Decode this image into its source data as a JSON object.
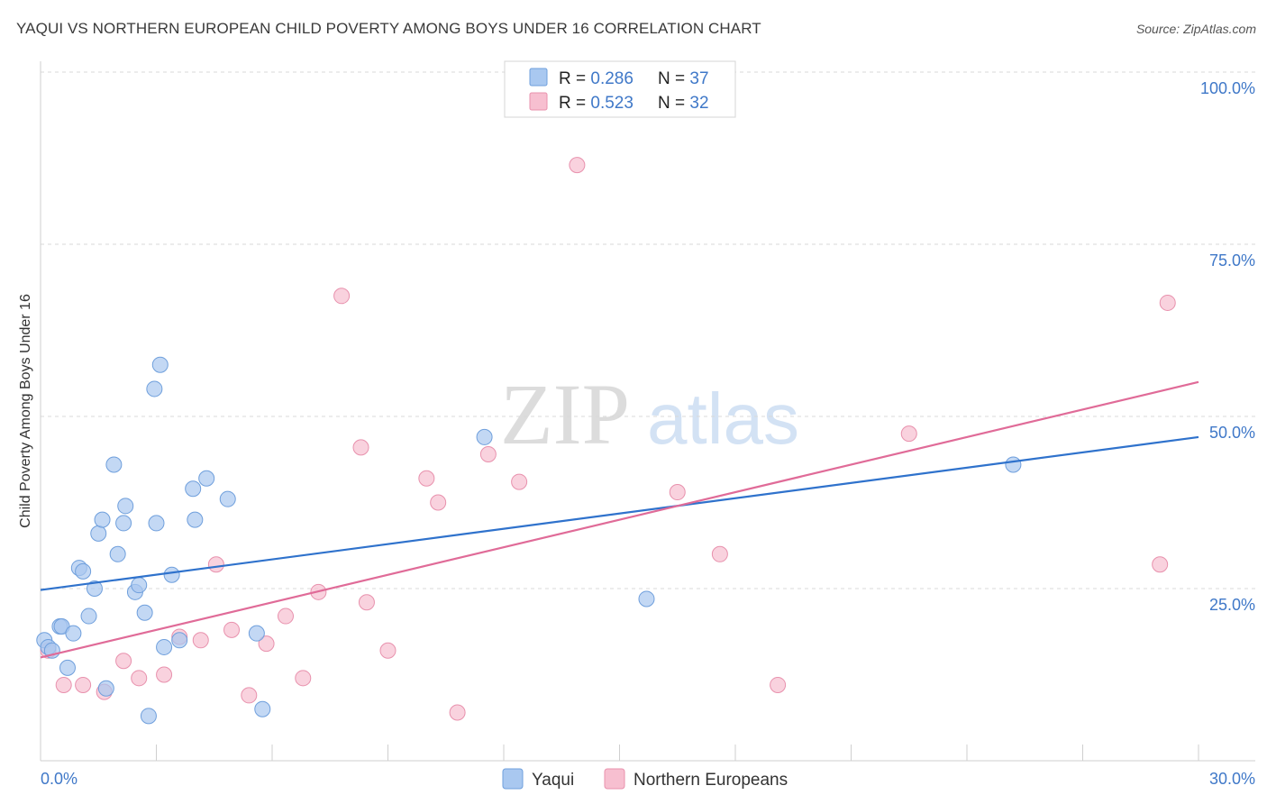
{
  "header": {
    "title": "YAQUI VS NORTHERN EUROPEAN CHILD POVERTY AMONG BOYS UNDER 16 CORRELATION CHART",
    "source": "Source: ZipAtlas.com"
  },
  "watermark": {
    "zip": "ZIP",
    "atlas": "atlas"
  },
  "colors": {
    "blue_fill": "#a9c8f0",
    "blue_stroke": "#6f9fdc",
    "blue_line": "#2f72cc",
    "pink_fill": "#f7bfd0",
    "pink_stroke": "#e891ad",
    "pink_line": "#e06b98",
    "axis_text": "#3f78c8",
    "grid": "#d9d9d9"
  },
  "legend_top": {
    "rows": [
      {
        "r_label": "R = ",
        "r_value": "0.286",
        "n_label": "N = ",
        "n_value": "37"
      },
      {
        "r_label": "R = ",
        "r_value": "0.523",
        "n_label": "N = ",
        "n_value": "32"
      }
    ]
  },
  "chart_data": {
    "type": "scatter",
    "title": "YAQUI VS NORTHERN EUROPEAN CHILD POVERTY AMONG BOYS UNDER 16 CORRELATION CHART",
    "xlabel": "",
    "ylabel": "Child Poverty Among Boys Under 16",
    "xlim": [
      0,
      30
    ],
    "ylim": [
      0,
      100
    ],
    "x_tick_labels": [
      "0.0%",
      "30.0%"
    ],
    "y_ticks": [
      25,
      50,
      75,
      100
    ],
    "y_tick_labels": [
      "25.0%",
      "50.0%",
      "75.0%",
      "100.0%"
    ],
    "grid": true,
    "legend_position": "bottom-center",
    "series": [
      {
        "name": "Yaqui",
        "r": 0.286,
        "n": 37,
        "trend": {
          "x": [
            0,
            30
          ],
          "y": [
            24.8,
            47.0
          ]
        },
        "points": [
          [
            0.1,
            17.5
          ],
          [
            0.2,
            16.5
          ],
          [
            0.3,
            16.0
          ],
          [
            0.5,
            19.5
          ],
          [
            0.55,
            19.5
          ],
          [
            0.7,
            13.5
          ],
          [
            0.85,
            18.5
          ],
          [
            1.0,
            28.0
          ],
          [
            1.1,
            27.5
          ],
          [
            1.25,
            21.0
          ],
          [
            1.4,
            25.0
          ],
          [
            1.5,
            33.0
          ],
          [
            1.6,
            35.0
          ],
          [
            1.7,
            10.5
          ],
          [
            1.9,
            43.0
          ],
          [
            2.0,
            30.0
          ],
          [
            2.15,
            34.5
          ],
          [
            2.2,
            37.0
          ],
          [
            2.45,
            24.5
          ],
          [
            2.55,
            25.5
          ],
          [
            2.7,
            21.5
          ],
          [
            2.8,
            6.5
          ],
          [
            2.95,
            54.0
          ],
          [
            3.0,
            34.5
          ],
          [
            3.1,
            57.5
          ],
          [
            3.2,
            16.5
          ],
          [
            3.4,
            27.0
          ],
          [
            3.6,
            17.5
          ],
          [
            3.95,
            39.5
          ],
          [
            4.0,
            35.0
          ],
          [
            4.3,
            41.0
          ],
          [
            4.85,
            38.0
          ],
          [
            5.6,
            18.5
          ],
          [
            5.75,
            7.5
          ],
          [
            11.5,
            47.0
          ],
          [
            15.7,
            23.5
          ],
          [
            25.2,
            43.0
          ]
        ]
      },
      {
        "name": "Northern Europeans",
        "r": 0.523,
        "n": 32,
        "trend": {
          "x": [
            0,
            30
          ],
          "y": [
            15.0,
            55.0
          ]
        },
        "points": [
          [
            0.2,
            16.0
          ],
          [
            0.6,
            11.0
          ],
          [
            1.1,
            11.0
          ],
          [
            1.65,
            10.0
          ],
          [
            2.15,
            14.5
          ],
          [
            2.55,
            12.0
          ],
          [
            3.2,
            12.5
          ],
          [
            3.6,
            18.0
          ],
          [
            4.15,
            17.5
          ],
          [
            4.55,
            28.5
          ],
          [
            4.95,
            19.0
          ],
          [
            5.4,
            9.5
          ],
          [
            5.85,
            17.0
          ],
          [
            6.35,
            21.0
          ],
          [
            6.8,
            12.0
          ],
          [
            7.2,
            24.5
          ],
          [
            7.8,
            67.5
          ],
          [
            8.3,
            45.5
          ],
          [
            8.45,
            23.0
          ],
          [
            9.0,
            16.0
          ],
          [
            10.0,
            41.0
          ],
          [
            10.3,
            37.5
          ],
          [
            10.8,
            7.0
          ],
          [
            11.6,
            44.5
          ],
          [
            12.4,
            40.5
          ],
          [
            13.9,
            86.5
          ],
          [
            16.5,
            39.0
          ],
          [
            17.6,
            30.0
          ],
          [
            19.1,
            11.0
          ],
          [
            22.5,
            47.5
          ],
          [
            29.0,
            28.5
          ],
          [
            29.2,
            66.5
          ]
        ]
      }
    ]
  }
}
